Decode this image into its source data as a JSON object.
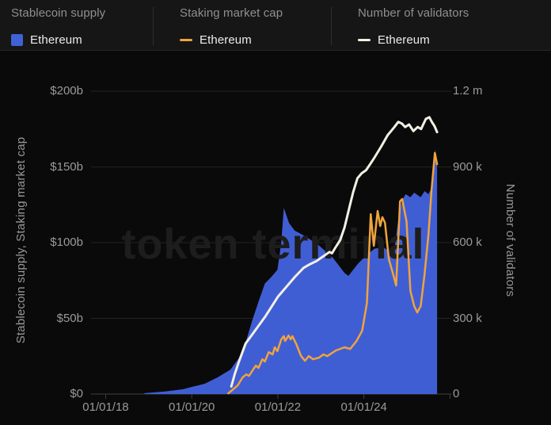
{
  "watermark": "token terminal",
  "colors": {
    "background": "#0a0a0a",
    "legend_band": "#161616",
    "stablecoin_blue": "#405ed4",
    "staking_orange": "#f0a33c",
    "validators_white": "#f2f0e3",
    "gridline": "#232323",
    "axis_line": "#3e3e3e",
    "tick_text": "#9a9a9a",
    "watermark_text": "#1d1d1d"
  },
  "legend": {
    "groups": [
      {
        "title": "Stablecoin supply",
        "item": "Ethereum",
        "swatch": "square",
        "color": "#4161d6"
      },
      {
        "title": "Staking market cap",
        "item": "Ethereum",
        "swatch": "dash",
        "color": "#f0a33c"
      },
      {
        "title": "Number of validators",
        "item": "Ethereum",
        "swatch": "dash",
        "color": "#f2f0e3"
      }
    ]
  },
  "chart_data": {
    "type": "area+line combo, dual y-axis",
    "x_axis": {
      "range": [
        2017.66,
        2026.03
      ],
      "ticks": [
        {
          "value": 2018,
          "label": "01/01/18"
        },
        {
          "value": 2020,
          "label": "01/01/20"
        },
        {
          "value": 2022,
          "label": "01/01/22"
        },
        {
          "value": 2024,
          "label": "01/01/24"
        },
        {
          "value": 2026,
          "label": ""
        }
      ]
    },
    "left_axis": {
      "label": "Stablecoin supply, Staking market cap",
      "unit": "USD billions",
      "range": [
        0,
        200
      ],
      "ticks": [
        {
          "value": 0,
          "label": "$0"
        },
        {
          "value": 50,
          "label": "$50b"
        },
        {
          "value": 100,
          "label": "$100b"
        },
        {
          "value": 150,
          "label": "$150b"
        },
        {
          "value": 200,
          "label": "$200b"
        }
      ]
    },
    "right_axis": {
      "label": "Number of validators",
      "unit": "millions of validators",
      "range": [
        0,
        1.2
      ],
      "ticks": [
        {
          "value": 0,
          "label": "0"
        },
        {
          "value": 0.3,
          "label": "300 k"
        },
        {
          "value": 0.6,
          "label": "600 k"
        },
        {
          "value": 0.9,
          "label": "900 k"
        },
        {
          "value": 1.2,
          "label": "1.2 m"
        }
      ]
    },
    "series": [
      {
        "name": "Stablecoin supply — Ethereum",
        "type": "area",
        "axis": "left",
        "color": "#405ed4",
        "points": [
          [
            2018.9,
            0.6
          ],
          [
            2019.4,
            1.8
          ],
          [
            2019.8,
            3.2
          ],
          [
            2020.0,
            4.7
          ],
          [
            2020.3,
            6.8
          ],
          [
            2020.6,
            11
          ],
          [
            2020.9,
            16.2
          ],
          [
            2021.1,
            24
          ],
          [
            2021.25,
            34
          ],
          [
            2021.4,
            48
          ],
          [
            2021.55,
            61
          ],
          [
            2021.7,
            73
          ],
          [
            2021.84,
            77
          ],
          [
            2021.99,
            82
          ],
          [
            2022.08,
            100
          ],
          [
            2022.14,
            123
          ],
          [
            2022.26,
            113
          ],
          [
            2022.39,
            108
          ],
          [
            2022.65,
            104
          ],
          [
            2022.96,
            98
          ],
          [
            2023.28,
            90
          ],
          [
            2023.55,
            80
          ],
          [
            2023.64,
            78
          ],
          [
            2023.86,
            86
          ],
          [
            2024.07,
            92
          ],
          [
            2024.25,
            96
          ],
          [
            2024.45,
            97
          ],
          [
            2024.6,
            94
          ],
          [
            2024.72,
            98
          ],
          [
            2024.8,
            115
          ],
          [
            2024.89,
            128
          ],
          [
            2024.97,
            132
          ],
          [
            2025.08,
            130
          ],
          [
            2025.17,
            133
          ],
          [
            2025.32,
            130
          ],
          [
            2025.41,
            134
          ],
          [
            2025.5,
            132
          ],
          [
            2025.57,
            136
          ],
          [
            2025.63,
            152
          ],
          [
            2025.66,
            162
          ],
          [
            2025.7,
            150
          ]
        ]
      },
      {
        "name": "Staking market cap — Ethereum",
        "type": "line",
        "axis": "left",
        "color": "#f0a33c",
        "points": [
          [
            2020.85,
            0.5
          ],
          [
            2020.96,
            3.1
          ],
          [
            2021.07,
            5.8
          ],
          [
            2021.18,
            11
          ],
          [
            2021.27,
            13
          ],
          [
            2021.33,
            12
          ],
          [
            2021.44,
            16.8
          ],
          [
            2021.49,
            18.8
          ],
          [
            2021.55,
            17.3
          ],
          [
            2021.64,
            23
          ],
          [
            2021.7,
            21.5
          ],
          [
            2021.79,
            27.7
          ],
          [
            2021.88,
            26.2
          ],
          [
            2021.93,
            30.9
          ],
          [
            2021.99,
            28.3
          ],
          [
            2022.08,
            36.1
          ],
          [
            2022.14,
            38.2
          ],
          [
            2022.17,
            35.1
          ],
          [
            2022.25,
            38.7
          ],
          [
            2022.3,
            36.1
          ],
          [
            2022.34,
            38.2
          ],
          [
            2022.43,
            33
          ],
          [
            2022.54,
            25.1
          ],
          [
            2022.63,
            22
          ],
          [
            2022.72,
            25.1
          ],
          [
            2022.82,
            23
          ],
          [
            2022.96,
            24.1
          ],
          [
            2023.06,
            26.2
          ],
          [
            2023.15,
            25.1
          ],
          [
            2023.35,
            28.8
          ],
          [
            2023.55,
            30.9
          ],
          [
            2023.68,
            29.8
          ],
          [
            2023.83,
            35.1
          ],
          [
            2023.96,
            41.9
          ],
          [
            2024.07,
            60.2
          ],
          [
            2024.16,
            118.8
          ],
          [
            2024.23,
            97.9
          ],
          [
            2024.32,
            120.9
          ],
          [
            2024.38,
            111
          ],
          [
            2024.43,
            116.8
          ],
          [
            2024.49,
            113.1
          ],
          [
            2024.58,
            89
          ],
          [
            2024.67,
            80.1
          ],
          [
            2024.75,
            71.7
          ],
          [
            2024.84,
            127.2
          ],
          [
            2024.89,
            128.8
          ],
          [
            2024.99,
            114.1
          ],
          [
            2025.08,
            68.1
          ],
          [
            2025.17,
            58.1
          ],
          [
            2025.24,
            53.9
          ],
          [
            2025.32,
            58.1
          ],
          [
            2025.41,
            79.1
          ],
          [
            2025.5,
            105.2
          ],
          [
            2025.57,
            134
          ],
          [
            2025.65,
            159.2
          ],
          [
            2025.7,
            151.8
          ]
        ]
      },
      {
        "name": "Number of validators — Ethereum",
        "type": "line",
        "axis": "right",
        "color": "#f2f0e3",
        "points": [
          [
            2020.92,
            0.03
          ],
          [
            2021.0,
            0.08
          ],
          [
            2021.1,
            0.13
          ],
          [
            2021.25,
            0.2
          ],
          [
            2021.4,
            0.235
          ],
          [
            2021.55,
            0.27
          ],
          [
            2021.7,
            0.305
          ],
          [
            2021.85,
            0.345
          ],
          [
            2022.0,
            0.385
          ],
          [
            2022.2,
            0.425
          ],
          [
            2022.4,
            0.465
          ],
          [
            2022.6,
            0.5
          ],
          [
            2022.75,
            0.515
          ],
          [
            2022.9,
            0.527
          ],
          [
            2023.05,
            0.545
          ],
          [
            2023.2,
            0.563
          ],
          [
            2023.26,
            0.558
          ],
          [
            2023.33,
            0.578
          ],
          [
            2023.45,
            0.61
          ],
          [
            2023.55,
            0.66
          ],
          [
            2023.65,
            0.73
          ],
          [
            2023.75,
            0.8
          ],
          [
            2023.85,
            0.855
          ],
          [
            2023.95,
            0.875
          ],
          [
            2024.05,
            0.887
          ],
          [
            2024.15,
            0.912
          ],
          [
            2024.25,
            0.938
          ],
          [
            2024.4,
            0.98
          ],
          [
            2024.55,
            1.025
          ],
          [
            2024.7,
            1.056
          ],
          [
            2024.8,
            1.078
          ],
          [
            2024.88,
            1.072
          ],
          [
            2024.96,
            1.058
          ],
          [
            2025.05,
            1.068
          ],
          [
            2025.15,
            1.042
          ],
          [
            2025.25,
            1.058
          ],
          [
            2025.33,
            1.05
          ],
          [
            2025.44,
            1.09
          ],
          [
            2025.52,
            1.097
          ],
          [
            2025.58,
            1.078
          ],
          [
            2025.64,
            1.062
          ],
          [
            2025.7,
            1.038
          ]
        ]
      }
    ]
  }
}
